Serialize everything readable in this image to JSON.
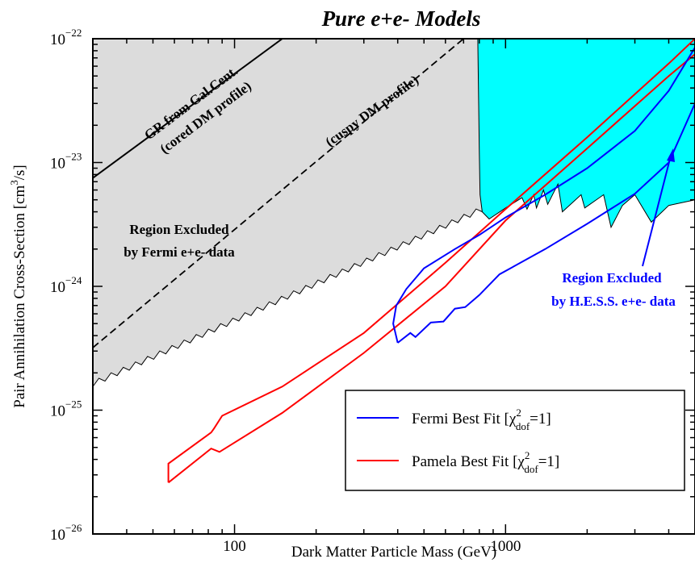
{
  "chart_data": {
    "type": "line",
    "title": "Pure e+e- Models",
    "xlabel": "Dark Matter Particle Mass (GeV)",
    "ylabel": "Pair Annihilation Cross-Section [cm^3/s]",
    "x_scale": "log",
    "y_scale": "log",
    "xlim": [
      30,
      5000
    ],
    "ylim": [
      1e-26,
      1e-22
    ],
    "x_ticks": [
      {
        "value": 100,
        "label": "100"
      },
      {
        "value": 1000,
        "label": "1000"
      }
    ],
    "y_ticks": [
      {
        "value": 1e-26,
        "base": "10",
        "exp": "−26"
      },
      {
        "value": 1e-25,
        "base": "10",
        "exp": "−25"
      },
      {
        "value": 1e-24,
        "base": "10",
        "exp": "−24"
      },
      {
        "value": 1e-23,
        "base": "10",
        "exp": "−23"
      },
      {
        "value": 1e-22,
        "base": "10",
        "exp": "−22"
      }
    ],
    "regions": [
      {
        "name": "Region Excluded by Fermi e+e- data",
        "label_lines": [
          "Region Excluded",
          "by Fermi e+e- data"
        ],
        "color": "#dcdcdc",
        "boundary_start": [
          30,
          1.55e-25
        ],
        "boundary_end": [
          820,
          4e-24
        ]
      },
      {
        "name": "Region Excluded by H.E.S.S. e+e- data",
        "label_lines": [
          "Region Excluded",
          "by H.E.S.S. e+e- data"
        ],
        "color": "#00ffff",
        "label_color": "#0000ff",
        "boundary": [
          [
            790,
            1e-22
          ],
          [
            800,
            1.2e-23
          ],
          [
            805,
            5.5e-24
          ],
          [
            820,
            4e-24
          ],
          [
            870,
            3.5e-24
          ],
          [
            1000,
            4.3e-24
          ],
          [
            1150,
            5.2e-24
          ],
          [
            1200,
            4.2e-24
          ],
          [
            1270,
            5.5e-24
          ],
          [
            1300,
            4.3e-24
          ],
          [
            1380,
            6e-24
          ],
          [
            1430,
            4.6e-24
          ],
          [
            1560,
            6.7e-24
          ],
          [
            1620,
            4e-24
          ],
          [
            1900,
            5.5e-24
          ],
          [
            1960,
            4.3e-24
          ],
          [
            2300,
            5.5e-24
          ],
          [
            2450,
            3e-24
          ],
          [
            2700,
            4.5e-24
          ],
          [
            3000,
            5.5e-24
          ],
          [
            3450,
            3.3e-24
          ],
          [
            4000,
            4.5e-24
          ],
          [
            5000,
            5e-24
          ]
        ]
      }
    ],
    "annotation_lines": [
      {
        "label_lines": [
          "GR from Gal.Cent.",
          "(cored DM profile)"
        ],
        "style": "solid",
        "points": [
          [
            30,
            7.5e-24
          ],
          [
            150,
            1e-22
          ]
        ]
      },
      {
        "label_lines": [
          "(cuspy DM profile)"
        ],
        "style": "dashed",
        "points": [
          [
            30,
            3.2e-25
          ],
          [
            700,
            1e-22
          ]
        ]
      }
    ],
    "series": [
      {
        "name": "Fermi Best Fit [χ²dof=1]",
        "color": "#0000ff",
        "contour": [
          [
            400,
            3.5e-25
          ],
          [
            445,
            4.2e-25
          ],
          [
            465,
            3.9e-25
          ],
          [
            530,
            5.1e-25
          ],
          [
            590,
            5.2e-25
          ],
          [
            650,
            6.6e-25
          ],
          [
            710,
            6.8e-25
          ],
          [
            800,
            8.5e-25
          ],
          [
            950,
            1.25e-24
          ],
          [
            1400,
            2e-24
          ],
          [
            2000,
            3.2e-24
          ],
          [
            3000,
            5.6e-24
          ],
          [
            4000,
            1e-23
          ],
          [
            5000,
            3e-23
          ],
          [
            5000,
            8.5e-23
          ],
          [
            4000,
            3.8e-23
          ],
          [
            3000,
            1.8e-23
          ],
          [
            2000,
            9e-24
          ],
          [
            1400,
            5.5e-24
          ],
          [
            1000,
            3.6e-24
          ],
          [
            800,
            2.6e-24
          ],
          [
            650,
            2e-24
          ],
          [
            500,
            1.4e-24
          ],
          [
            430,
            9.5e-25
          ],
          [
            395,
            7e-25
          ],
          [
            385,
            5e-25
          ],
          [
            400,
            3.5e-25
          ]
        ]
      },
      {
        "name": "Pamela Best Fit [χ²dof=1]",
        "color": "#ff0000",
        "contour": [
          [
            57,
            2.6e-26
          ],
          [
            82,
            4.9e-26
          ],
          [
            88,
            4.6e-26
          ],
          [
            150,
            9.5e-26
          ],
          [
            300,
            2.9e-25
          ],
          [
            600,
            1e-24
          ],
          [
            1000,
            3.4e-24
          ],
          [
            2000,
            1.3e-23
          ],
          [
            4000,
            5e-23
          ],
          [
            5000,
            7.5e-23
          ],
          [
            5000,
            1e-22
          ],
          [
            4000,
            6.3e-23
          ],
          [
            2000,
            1.6e-23
          ],
          [
            1000,
            4.2e-24
          ],
          [
            600,
            1.55e-24
          ],
          [
            300,
            4.2e-25
          ],
          [
            150,
            1.55e-25
          ],
          [
            90,
            9e-26
          ],
          [
            84,
            7.1e-26
          ],
          [
            82,
            6.6e-26
          ],
          [
            57,
            3.7e-26
          ],
          [
            57,
            2.6e-26
          ]
        ]
      }
    ],
    "legend": {
      "placement": "bottom-right",
      "entries": [
        {
          "name": "Fermi Best Fit [χ²dof=1]",
          "text": "Fermi Best Fit [χ",
          "sup": "2",
          "sub": "dof",
          "tail": "=1]",
          "color": "#0000ff"
        },
        {
          "name": "Pamela Best Fit [χ²dof=1]",
          "text": "Pamela Best Fit [χ",
          "sup": "2",
          "sub": "dof",
          "tail": "=1]",
          "color": "#ff0000"
        }
      ]
    },
    "ylabel_parts": {
      "main": "Pair Annihilation Cross-Section [cm",
      "sup": "3",
      "tail": "/s]"
    },
    "grid": false
  }
}
